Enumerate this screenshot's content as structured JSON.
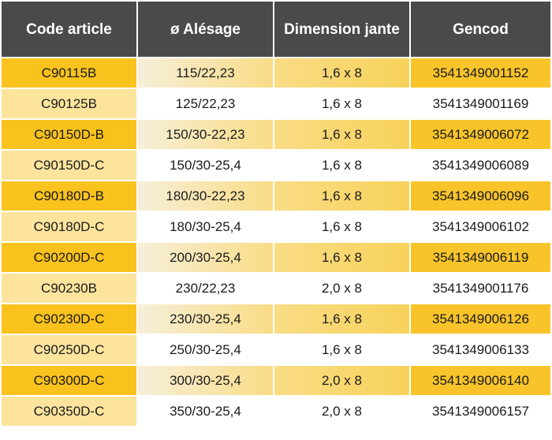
{
  "table": {
    "headers": [
      "Code article",
      "ø Alésage",
      "Dimension jante",
      "Gencod"
    ],
    "rows": [
      [
        "C90115B",
        "115/22,23",
        "1,6 x 8",
        "3541349001152"
      ],
      [
        "C90125B",
        "125/22,23",
        "1,6 x 8",
        "3541349001169"
      ],
      [
        "C90150D-B",
        "150/30-22,23",
        "1,6 x 8",
        "3541349006072"
      ],
      [
        "C90150D-C",
        "150/30-25,4",
        "1,6 x 8",
        "3541349006089"
      ],
      [
        "C90180D-B",
        "180/30-22,23",
        "1,6 x 8",
        "3541349006096"
      ],
      [
        "C90180D-C",
        "180/30-25,4",
        "1,6 x 8",
        "3541349006102"
      ],
      [
        "C90200D-C",
        "200/30-25,4",
        "1,6 x 8",
        "3541349006119"
      ],
      [
        "C90230B",
        "230/22,23",
        "2,0 x 8",
        "3541349001176"
      ],
      [
        "C90230D-C",
        "230/30-25,4",
        "1,6 x 8",
        "3541349006126"
      ],
      [
        "C90250D-C",
        "250/30-25,4",
        "1,6 x 8",
        "3541349006133"
      ],
      [
        "C90300D-C",
        "300/30-25,4",
        "2,0 x 8",
        "3541349006140"
      ],
      [
        "C90350D-C",
        "350/30-25,4",
        "2,0 x 8",
        "3541349006157"
      ]
    ]
  },
  "colors": {
    "header_bg": "#4a4a4a",
    "header_text": "#ffffff",
    "code_odd": "#f9c21c",
    "code_even": "#fce49d",
    "gencod_odd": "#f8c42a",
    "row_even": "#ffffff"
  }
}
